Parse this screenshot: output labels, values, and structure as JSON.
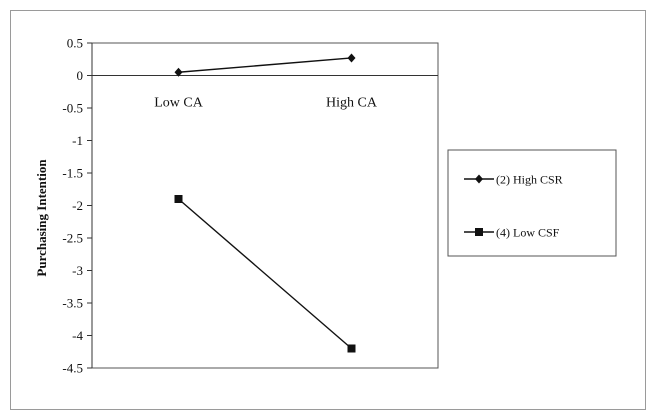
{
  "chart_data": {
    "type": "line",
    "categories": [
      "Low CA",
      "High CA"
    ],
    "ylabel": "Purchasing Intention",
    "xlabel": "",
    "ylim": [
      -4.5,
      0.5
    ],
    "yticks": [
      "0.5",
      "0",
      "-0.5",
      "-1",
      "-1.5",
      "-2",
      "-2.5",
      "-3",
      "-3.5",
      "-4",
      "-4.5"
    ],
    "grid": false,
    "legend_position": "right",
    "series": [
      {
        "name": "(2) High CSR",
        "marker": "diamond",
        "color": "#111111",
        "values": [
          0.05,
          0.27
        ]
      },
      {
        "name": "(4) Low CSF",
        "marker": "square",
        "color": "#111111",
        "values": [
          -1.9,
          -4.2
        ]
      }
    ]
  }
}
